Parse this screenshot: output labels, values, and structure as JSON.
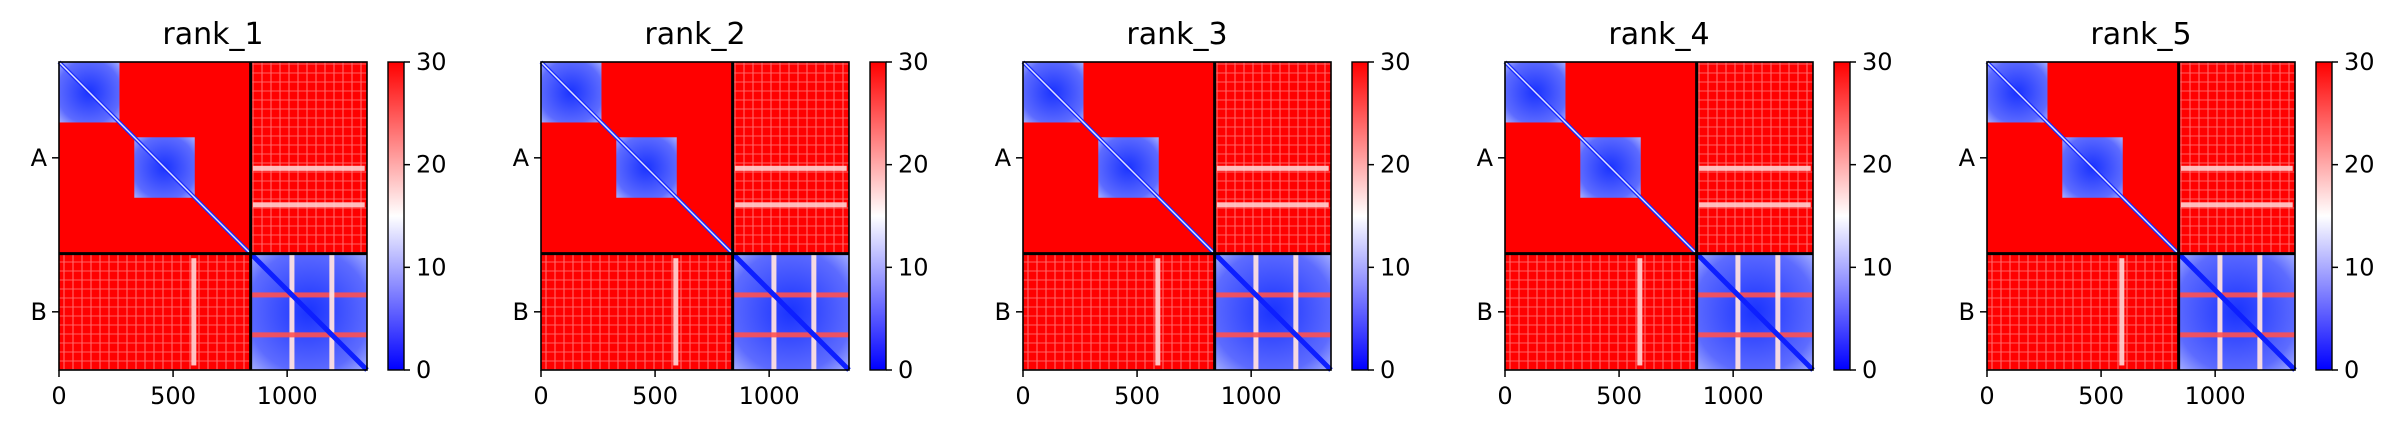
{
  "chart_data": [
    {
      "type": "heatmap",
      "title": "rank_1",
      "y_categories": [
        "A",
        "B"
      ],
      "x_ticks": [
        0,
        500,
        1000
      ],
      "colorbar_ticks": [
        0,
        10,
        20,
        30
      ],
      "colorbar_range": [
        0,
        30
      ],
      "colormap": "bwr",
      "chain_lengths": [
        840,
        510
      ],
      "chain_boundary": 840,
      "axis_range": [
        0,
        1350
      ]
    },
    {
      "type": "heatmap",
      "title": "rank_2",
      "y_categories": [
        "A",
        "B"
      ],
      "x_ticks": [
        0,
        500,
        1000
      ],
      "colorbar_ticks": [
        0,
        10,
        20,
        30
      ],
      "colorbar_range": [
        0,
        30
      ],
      "colormap": "bwr",
      "chain_lengths": [
        840,
        510
      ],
      "chain_boundary": 840,
      "axis_range": [
        0,
        1350
      ]
    },
    {
      "type": "heatmap",
      "title": "rank_3",
      "y_categories": [
        "A",
        "B"
      ],
      "x_ticks": [
        0,
        500,
        1000
      ],
      "colorbar_ticks": [
        0,
        10,
        20,
        30
      ],
      "colorbar_range": [
        0,
        30
      ],
      "colormap": "bwr",
      "chain_lengths": [
        840,
        510
      ],
      "chain_boundary": 840,
      "axis_range": [
        0,
        1350
      ]
    },
    {
      "type": "heatmap",
      "title": "rank_4",
      "y_categories": [
        "A",
        "B"
      ],
      "x_ticks": [
        0,
        500,
        1000
      ],
      "colorbar_ticks": [
        0,
        10,
        20,
        30
      ],
      "colorbar_range": [
        0,
        30
      ],
      "colormap": "bwr",
      "chain_lengths": [
        840,
        510
      ],
      "chain_boundary": 840,
      "axis_range": [
        0,
        1350
      ]
    },
    {
      "type": "heatmap",
      "title": "rank_5",
      "y_categories": [
        "A",
        "B"
      ],
      "x_ticks": [
        0,
        500,
        1000
      ],
      "colorbar_ticks": [
        0,
        10,
        20,
        30
      ],
      "colorbar_range": [
        0,
        30
      ],
      "colormap": "bwr",
      "chain_lengths": [
        840,
        510
      ],
      "chain_boundary": 840,
      "axis_range": [
        0,
        1350
      ]
    }
  ],
  "colors": {
    "high": "#ff0000",
    "mid": "#ffffff",
    "low": "#0000ff",
    "divider": "#000000"
  }
}
